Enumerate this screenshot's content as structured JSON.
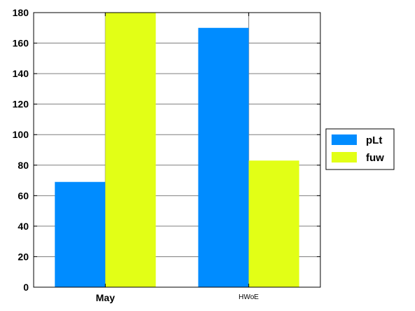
{
  "chart_data": {
    "type": "bar",
    "categories": [
      "May",
      "HWoE"
    ],
    "series": [
      {
        "name": "pLt",
        "values": [
          69,
          170
        ],
        "color": "#008cff"
      },
      {
        "name": "fuw",
        "values": [
          180,
          83
        ],
        "color": "#e2ff16"
      }
    ],
    "ylim": [
      0,
      180
    ],
    "yticks": [
      0,
      20,
      40,
      60,
      80,
      100,
      120,
      140,
      160,
      180
    ],
    "grid": true,
    "legend_position": "right"
  }
}
